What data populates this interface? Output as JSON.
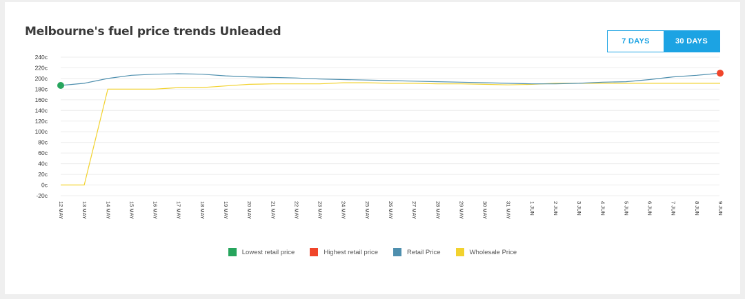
{
  "page": {
    "title": "Melbourne's fuel price trends Unleaded"
  },
  "range_toggle": {
    "options": [
      {
        "label": "7 DAYS",
        "active": false
      },
      {
        "label": "30 DAYS",
        "active": true
      }
    ]
  },
  "colors": {
    "accent": "#1ca3e3",
    "retail": "#4e8fae",
    "wholesale": "#f2d22e",
    "lowest": "#27a55d",
    "highest": "#f0452a",
    "grid": "#ececec"
  },
  "legend": [
    {
      "label": "Lowest retail price",
      "color_key": "lowest"
    },
    {
      "label": "Highest retail price",
      "color_key": "highest"
    },
    {
      "label": "Retail Price",
      "color_key": "retail"
    },
    {
      "label": "Wholesale Price",
      "color_key": "wholesale"
    }
  ],
  "chart_data": {
    "type": "line",
    "title": "Melbourne's fuel price trends Unleaded",
    "x": [
      "12 MAY",
      "13 MAY",
      "14 MAY",
      "15 MAY",
      "16 MAY",
      "17 MAY",
      "18 MAY",
      "19 MAY",
      "20 MAY",
      "21 MAY",
      "22 MAY",
      "23 MAY",
      "24 MAY",
      "25 MAY",
      "26 MAY",
      "27 MAY",
      "28 MAY",
      "29 MAY",
      "30 MAY",
      "31 MAY",
      "1 JUN",
      "2 JUN",
      "3 JUN",
      "4 JUN",
      "5 JUN",
      "6 JUN",
      "7 JUN",
      "8 JUN",
      "9 JUN"
    ],
    "y_ticks": [
      "240c",
      "220c",
      "200c",
      "180c",
      "160c",
      "140c",
      "120c",
      "100c",
      "80c",
      "60c",
      "40c",
      "20c",
      "0c",
      "-20c"
    ],
    "ylim": [
      -20,
      240
    ],
    "grid": true,
    "legend_position": "bottom",
    "series": [
      {
        "name": "Retail Price",
        "color_key": "retail",
        "values": [
          187,
          191,
          200,
          206,
          208,
          209,
          208,
          205,
          203,
          202,
          201,
          199,
          198,
          197,
          196,
          195,
          194,
          193,
          192,
          191,
          190,
          190,
          191,
          193,
          194,
          198,
          203,
          206,
          210
        ]
      },
      {
        "name": "Wholesale Price",
        "color_key": "wholesale",
        "values": [
          0,
          0,
          180,
          180,
          180,
          183,
          183,
          186,
          189,
          190,
          190,
          190,
          192,
          192,
          191,
          191,
          190,
          190,
          189,
          188,
          189,
          191,
          191,
          191,
          191,
          191,
          191,
          191,
          191
        ]
      }
    ],
    "markers": [
      {
        "name": "Lowest retail price",
        "x": "12 MAY",
        "y": 187,
        "color_key": "lowest"
      },
      {
        "name": "Highest retail price",
        "x": "9 JUN",
        "y": 210,
        "color_key": "highest"
      }
    ]
  }
}
